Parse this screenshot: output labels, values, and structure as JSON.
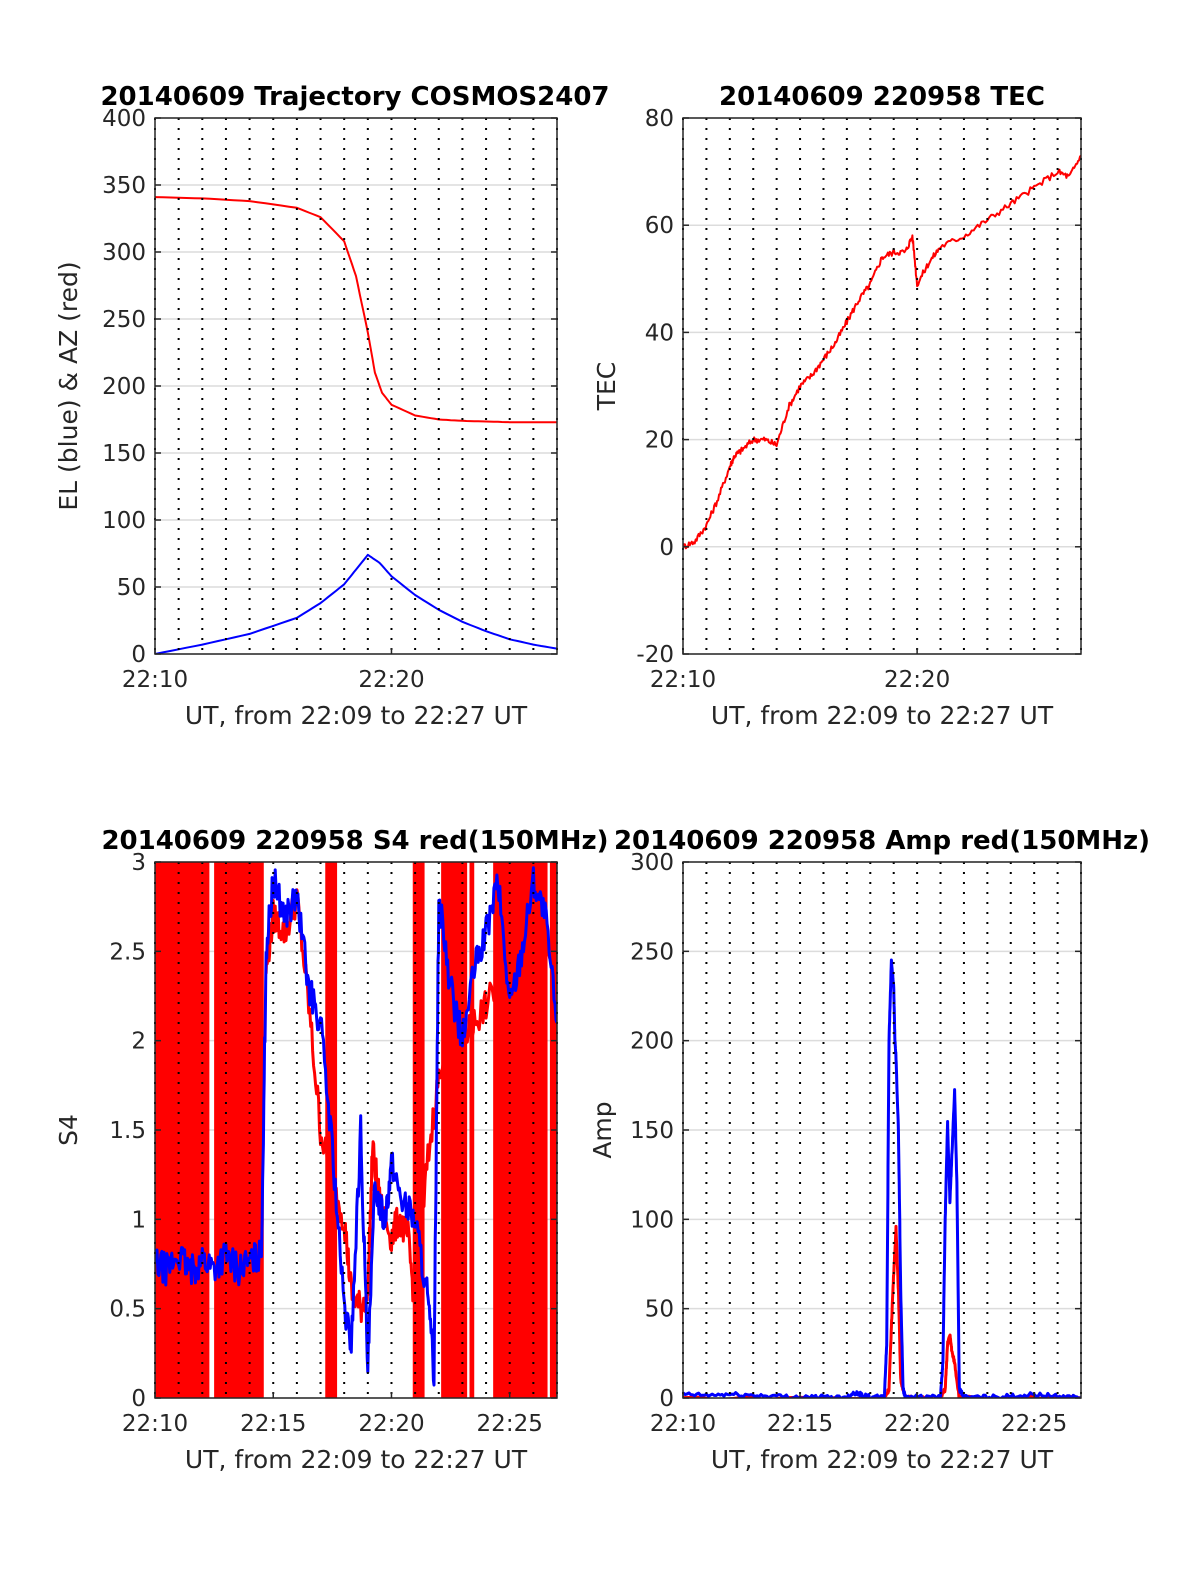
{
  "colors": {
    "red": "#ff0000",
    "blue": "#0000ff",
    "grid_major": "#dcdcdc",
    "grid_vert": "#000000",
    "axes": "#262626"
  },
  "chart_data": [
    {
      "type": "line",
      "title": "20140609 Trajectory COSMOS2407",
      "xlabel": "UT, from 22:09 to 22:27 UT",
      "ylabel": "EL (blue) & AZ (red)",
      "xlim": [
        0,
        17
      ],
      "ylim": [
        0,
        400
      ],
      "yticks": [
        0,
        50,
        100,
        150,
        200,
        250,
        300,
        350,
        400
      ],
      "xticks": [
        {
          "x": 0,
          "label": "22:10"
        },
        {
          "x": 10,
          "label": "22:20"
        }
      ],
      "grid": "on",
      "series": [
        {
          "color": "blue",
          "x": [
            0,
            2,
            4,
            6,
            7,
            8,
            8.5,
            9,
            9.5,
            10,
            11,
            12,
            13,
            14,
            15,
            16,
            17
          ],
          "y": [
            0,
            7,
            15,
            27,
            38,
            52,
            63,
            74,
            68,
            58,
            44,
            33,
            24,
            17,
            11,
            7,
            4
          ]
        },
        {
          "color": "red",
          "x": [
            0,
            2,
            4,
            6,
            7,
            8,
            8.5,
            9,
            9.3,
            9.6,
            10,
            11,
            12,
            13,
            14,
            15,
            16,
            17
          ],
          "y": [
            341,
            340,
            338,
            333,
            326,
            308,
            282,
            240,
            210,
            195,
            186,
            178,
            175,
            174,
            173.5,
            173,
            173,
            173
          ]
        }
      ]
    },
    {
      "type": "line",
      "title": "20140609 220958 TEC",
      "xlabel": "UT, from 22:09 to 22:27 UT",
      "ylabel": "TEC",
      "xlim": [
        0,
        17
      ],
      "ylim": [
        -20,
        80
      ],
      "yticks": [
        -20,
        0,
        20,
        40,
        60,
        80
      ],
      "xticks": [
        {
          "x": 0,
          "label": "22:10"
        },
        {
          "x": 10,
          "label": "22:20"
        }
      ],
      "grid": "on",
      "series": [
        {
          "color": "red",
          "x": [
            0,
            0.5,
            1,
            1.5,
            2,
            2.2,
            2.5,
            3,
            3.5,
            4,
            4.5,
            5,
            5.5,
            6,
            6.5,
            7,
            7.5,
            8,
            8.5,
            9,
            9.5,
            9.8,
            10,
            10.5,
            11,
            12,
            13,
            14,
            15,
            16,
            16.5,
            17
          ],
          "y": [
            0,
            1,
            4,
            9,
            15,
            17,
            18,
            20,
            20,
            19,
            26,
            30,
            32,
            35,
            38,
            42,
            46,
            49,
            54,
            55,
            55,
            58,
            49,
            53,
            56,
            58,
            61,
            64,
            67,
            70,
            69,
            73
          ]
        }
      ]
    },
    {
      "type": "line",
      "title": "20140609 220958 S4 red(150MHz)",
      "xlabel": "UT, from 22:09 to 22:27 UT",
      "ylabel": "S4",
      "xlim": [
        0,
        17
      ],
      "ylim": [
        0,
        3
      ],
      "yticks": [
        0,
        0.5,
        1,
        1.5,
        2,
        2.5,
        3
      ],
      "xticks": [
        {
          "x": 0,
          "label": "22:10"
        },
        {
          "x": 5,
          "label": "22:15"
        },
        {
          "x": 10,
          "label": "22:20"
        },
        {
          "x": 15,
          "label": "22:25"
        }
      ],
      "grid": "on",
      "red_fill_bands": [
        [
          0,
          2.3
        ],
        [
          2.5,
          4.6
        ],
        [
          7.2,
          7.7
        ],
        [
          10.9,
          11.4
        ],
        [
          12.1,
          13.2
        ],
        [
          13.3,
          13.5
        ],
        [
          14.3,
          16.6
        ],
        [
          16.7,
          17
        ]
      ],
      "series": [
        {
          "color": "red",
          "x": [
            4.7,
            5,
            5.5,
            6,
            6.5,
            7,
            7.5,
            8,
            8.3,
            8.7,
            9,
            9.2,
            9.5,
            10,
            10.3,
            10.7,
            11,
            11.5,
            12,
            13,
            13.5,
            14,
            15,
            16,
            16.5,
            17
          ],
          "y": [
            2.4,
            2.7,
            2.6,
            2.8,
            2.2,
            1.5,
            1.2,
            1.0,
            0.6,
            0.5,
            0.6,
            1.4,
            1.1,
            0.9,
            1.0,
            0.9,
            0.5,
            1.3,
            1.8,
            2.0,
            2.1,
            2.2,
            2.4,
            2.5,
            2.6,
            2.4
          ]
        },
        {
          "color": "blue",
          "x": [
            0,
            0.5,
            1,
            1.5,
            2,
            2.5,
            3,
            3.5,
            4,
            4.5,
            4.7,
            5,
            5.5,
            6,
            6.5,
            7,
            7.5,
            8,
            8.3,
            8.7,
            9,
            9.3,
            9.7,
            10,
            10.5,
            11,
            11.5,
            11.8,
            12,
            12.5,
            13,
            13.5,
            14,
            14.5,
            15,
            15.5,
            16,
            16.5,
            17
          ],
          "y": [
            0.75,
            0.72,
            0.8,
            0.7,
            0.78,
            0.73,
            0.8,
            0.72,
            0.76,
            0.8,
            2.5,
            2.9,
            2.7,
            2.8,
            2.3,
            2.1,
            1.4,
            0.5,
            0.3,
            1.5,
            0.15,
            1.2,
            1.0,
            1.3,
            1.1,
            1.0,
            0.6,
            0.15,
            2.8,
            2.3,
            2.0,
            2.4,
            2.6,
            2.9,
            2.2,
            2.5,
            2.9,
            2.7,
            2.1
          ]
        }
      ]
    },
    {
      "type": "line",
      "title": "20140609 220958 Amp red(150MHz)",
      "xlabel": "UT, from 22:09 to 22:27 UT",
      "ylabel": "Amp",
      "xlim": [
        0,
        17
      ],
      "ylim": [
        0,
        300
      ],
      "yticks": [
        0,
        50,
        100,
        150,
        200,
        250,
        300
      ],
      "xticks": [
        {
          "x": 0,
          "label": "22:10"
        },
        {
          "x": 5,
          "label": "22:15"
        },
        {
          "x": 10,
          "label": "22:20"
        },
        {
          "x": 15,
          "label": "22:25"
        }
      ],
      "grid": "on",
      "series": [
        {
          "color": "red",
          "x": [
            0,
            8.6,
            8.8,
            8.9,
            9.0,
            9.1,
            9.2,
            9.3,
            9.5,
            11,
            11.2,
            11.3,
            11.4,
            11.5,
            11.6,
            11.8,
            17
          ],
          "y": [
            0,
            0,
            5,
            40,
            70,
            95,
            60,
            10,
            0,
            0,
            5,
            30,
            35,
            25,
            20,
            0,
            0
          ]
        },
        {
          "color": "blue",
          "x": [
            0,
            1,
            2,
            3,
            4,
            5,
            6,
            7,
            7.3,
            7.6,
            8,
            8.6,
            8.7,
            8.8,
            8.9,
            9.0,
            9.05,
            9.1,
            9.2,
            9.3,
            9.4,
            9.5,
            10,
            11,
            11.1,
            11.2,
            11.3,
            11.4,
            11.5,
            11.6,
            11.7,
            11.8,
            12,
            13,
            14,
            15,
            16,
            17
          ],
          "y": [
            2,
            1.5,
            2,
            1.5,
            1,
            0.5,
            0.5,
            0.5,
            3,
            2,
            0.5,
            0.5,
            30,
            200,
            245,
            230,
            200,
            190,
            150,
            60,
            5,
            0.5,
            0.5,
            0.5,
            20,
            100,
            155,
            110,
            140,
            172,
            120,
            5,
            0.5,
            0.5,
            1,
            2,
            1,
            0.5
          ]
        }
      ]
    }
  ]
}
